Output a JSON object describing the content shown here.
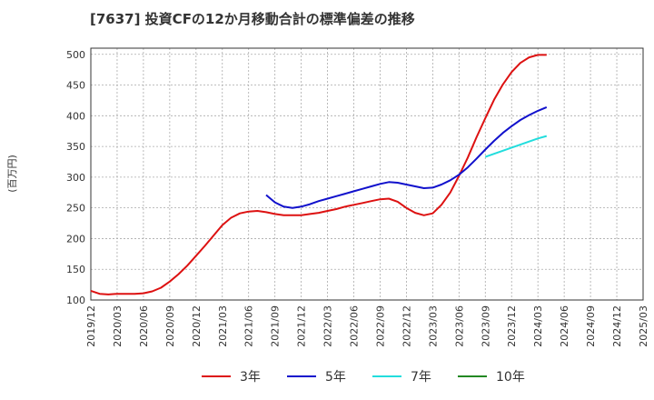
{
  "chart_data": {
    "type": "line",
    "title": "[7637]  投資CFの12か月移動合計の標準偏差の推移",
    "ylabel": "(百万円)",
    "xlabel": "",
    "ylim": [
      100,
      510
    ],
    "yticks": [
      100,
      150,
      200,
      250,
      300,
      350,
      400,
      450,
      500
    ],
    "xticks": [
      "2019/12",
      "2020/03",
      "2020/06",
      "2020/09",
      "2020/12",
      "2021/03",
      "2021/06",
      "2021/09",
      "2021/12",
      "2022/03",
      "2022/06",
      "2022/09",
      "2022/12",
      "2023/03",
      "2023/06",
      "2023/09",
      "2023/12",
      "2024/03",
      "2024/06",
      "2024/09",
      "2024/12",
      "2025/03"
    ],
    "grid": true,
    "legend_position": "bottom",
    "series": [
      {
        "name": "3年",
        "color": "#dd1111",
        "points": [
          [
            "2019/12",
            115
          ],
          [
            "2020/01",
            110
          ],
          [
            "2020/02",
            109
          ],
          [
            "2020/03",
            110
          ],
          [
            "2020/04",
            110
          ],
          [
            "2020/05",
            110
          ],
          [
            "2020/06",
            111
          ],
          [
            "2020/07",
            114
          ],
          [
            "2020/08",
            120
          ],
          [
            "2020/09",
            130
          ],
          [
            "2020/10",
            142
          ],
          [
            "2020/11",
            156
          ],
          [
            "2020/12",
            172
          ],
          [
            "2021/01",
            188
          ],
          [
            "2021/02",
            205
          ],
          [
            "2021/03",
            222
          ],
          [
            "2021/04",
            234
          ],
          [
            "2021/05",
            241
          ],
          [
            "2021/06",
            244
          ],
          [
            "2021/07",
            245
          ],
          [
            "2021/08",
            243
          ],
          [
            "2021/09",
            240
          ],
          [
            "2021/10",
            238
          ],
          [
            "2021/11",
            238
          ],
          [
            "2021/12",
            238
          ],
          [
            "2022/01",
            240
          ],
          [
            "2022/02",
            242
          ],
          [
            "2022/03",
            245
          ],
          [
            "2022/04",
            248
          ],
          [
            "2022/05",
            252
          ],
          [
            "2022/06",
            255
          ],
          [
            "2022/07",
            258
          ],
          [
            "2022/08",
            261
          ],
          [
            "2022/09",
            264
          ],
          [
            "2022/10",
            265
          ],
          [
            "2022/11",
            260
          ],
          [
            "2022/12",
            250
          ],
          [
            "2023/01",
            242
          ],
          [
            "2023/02",
            238
          ],
          [
            "2023/03",
            241
          ],
          [
            "2023/04",
            255
          ],
          [
            "2023/05",
            275
          ],
          [
            "2023/06",
            302
          ],
          [
            "2023/07",
            332
          ],
          [
            "2023/08",
            365
          ],
          [
            "2023/09",
            396
          ],
          [
            "2023/10",
            426
          ],
          [
            "2023/11",
            451
          ],
          [
            "2023/12",
            471
          ],
          [
            "2024/01",
            486
          ],
          [
            "2024/02",
            495
          ],
          [
            "2024/03",
            499
          ],
          [
            "2024/04",
            499
          ]
        ]
      },
      {
        "name": "5年",
        "color": "#1111cc",
        "points": [
          [
            "2021/08",
            271
          ],
          [
            "2021/09",
            259
          ],
          [
            "2021/10",
            252
          ],
          [
            "2021/11",
            250
          ],
          [
            "2021/12",
            252
          ],
          [
            "2022/01",
            256
          ],
          [
            "2022/02",
            261
          ],
          [
            "2022/03",
            265
          ],
          [
            "2022/04",
            269
          ],
          [
            "2022/05",
            273
          ],
          [
            "2022/06",
            277
          ],
          [
            "2022/07",
            281
          ],
          [
            "2022/08",
            285
          ],
          [
            "2022/09",
            289
          ],
          [
            "2022/10",
            292
          ],
          [
            "2022/11",
            291
          ],
          [
            "2022/12",
            288
          ],
          [
            "2023/01",
            285
          ],
          [
            "2023/02",
            282
          ],
          [
            "2023/03",
            283
          ],
          [
            "2023/04",
            288
          ],
          [
            "2023/05",
            295
          ],
          [
            "2023/06",
            304
          ],
          [
            "2023/07",
            316
          ],
          [
            "2023/08",
            330
          ],
          [
            "2023/09",
            345
          ],
          [
            "2023/10",
            359
          ],
          [
            "2023/11",
            372
          ],
          [
            "2023/12",
            383
          ],
          [
            "2024/01",
            393
          ],
          [
            "2024/02",
            401
          ],
          [
            "2024/03",
            408
          ],
          [
            "2024/04",
            414
          ]
        ]
      },
      {
        "name": "7年",
        "color": "#22dddd",
        "points": [
          [
            "2023/09",
            333
          ],
          [
            "2023/10",
            338
          ],
          [
            "2023/11",
            343
          ],
          [
            "2023/12",
            348
          ],
          [
            "2024/01",
            353
          ],
          [
            "2024/02",
            358
          ],
          [
            "2024/03",
            363
          ],
          [
            "2024/04",
            367
          ]
        ]
      },
      {
        "name": "10年",
        "color": "#228822",
        "points": []
      }
    ]
  }
}
